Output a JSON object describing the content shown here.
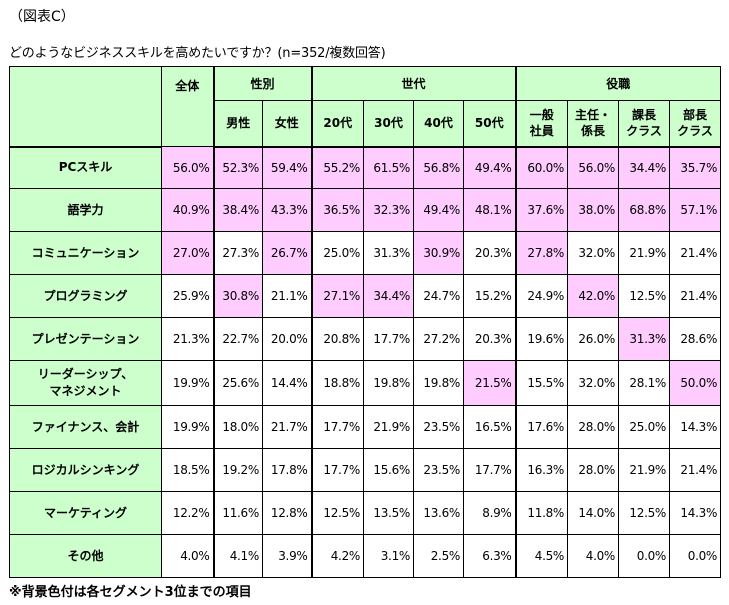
{
  "figure_label": "（図表C）",
  "question": "どのようなビジネススキルを高めたいですか？(n=352/複数回答)",
  "note": "※背景色付は各セグメント3位までの項目",
  "header": {
    "total": "全体",
    "groups": [
      {
        "label": "性別",
        "cols": [
          "男性",
          "女性"
        ]
      },
      {
        "label": "世代",
        "cols": [
          "20代",
          "30代",
          "40代",
          "50代"
        ]
      },
      {
        "label": "役職",
        "cols": [
          "一般\n社員",
          "主任・\n係長",
          "課長\nクラス",
          "部長\nクラス"
        ]
      }
    ]
  },
  "rows": [
    {
      "label": "PCスキル",
      "values": [
        "56.0%",
        "52.3%",
        "59.4%",
        "55.2%",
        "61.5%",
        "56.8%",
        "49.4%",
        "60.0%",
        "56.0%",
        "34.4%",
        "35.7%"
      ],
      "highlight": [
        1,
        1,
        1,
        1,
        1,
        1,
        1,
        1,
        1,
        1,
        1
      ]
    },
    {
      "label": "語学力",
      "values": [
        "40.9%",
        "38.4%",
        "43.3%",
        "36.5%",
        "32.3%",
        "49.4%",
        "48.1%",
        "37.6%",
        "38.0%",
        "68.8%",
        "57.1%"
      ],
      "highlight": [
        1,
        1,
        1,
        1,
        1,
        1,
        1,
        1,
        1,
        1,
        1
      ]
    },
    {
      "label": "コミュニケーション",
      "values": [
        "27.0%",
        "27.3%",
        "26.7%",
        "25.0%",
        "31.3%",
        "30.9%",
        "20.3%",
        "27.8%",
        "32.0%",
        "21.9%",
        "21.4%"
      ],
      "highlight": [
        1,
        0,
        1,
        0,
        0,
        1,
        0,
        1,
        0,
        0,
        0
      ]
    },
    {
      "label": "プログラミング",
      "values": [
        "25.9%",
        "30.8%",
        "21.1%",
        "27.1%",
        "34.4%",
        "24.7%",
        "15.2%",
        "24.9%",
        "42.0%",
        "12.5%",
        "21.4%"
      ],
      "highlight": [
        0,
        1,
        0,
        1,
        1,
        0,
        0,
        0,
        1,
        0,
        0
      ]
    },
    {
      "label": "プレゼンテーション",
      "values": [
        "21.3%",
        "22.7%",
        "20.0%",
        "20.8%",
        "17.7%",
        "27.2%",
        "20.3%",
        "19.6%",
        "26.0%",
        "31.3%",
        "28.6%"
      ],
      "highlight": [
        0,
        0,
        0,
        0,
        0,
        0,
        0,
        0,
        0,
        1,
        0
      ]
    },
    {
      "label": "リーダーシップ、\nマネジメント",
      "values": [
        "19.9%",
        "25.6%",
        "14.4%",
        "18.8%",
        "19.8%",
        "19.8%",
        "21.5%",
        "15.5%",
        "32.0%",
        "28.1%",
        "50.0%"
      ],
      "highlight": [
        0,
        0,
        0,
        0,
        0,
        0,
        1,
        0,
        0,
        0,
        1
      ]
    },
    {
      "label": "ファイナンス、会計",
      "values": [
        "19.9%",
        "18.0%",
        "21.7%",
        "17.7%",
        "21.9%",
        "23.5%",
        "16.5%",
        "17.6%",
        "28.0%",
        "25.0%",
        "14.3%"
      ],
      "highlight": [
        0,
        0,
        0,
        0,
        0,
        0,
        0,
        0,
        0,
        0,
        0
      ]
    },
    {
      "label": "ロジカルシンキング",
      "values": [
        "18.5%",
        "19.2%",
        "17.8%",
        "17.7%",
        "15.6%",
        "23.5%",
        "17.7%",
        "16.3%",
        "28.0%",
        "21.9%",
        "21.4%"
      ],
      "highlight": [
        0,
        0,
        0,
        0,
        0,
        0,
        0,
        0,
        0,
        0,
        0
      ]
    },
    {
      "label": "マーケティング",
      "values": [
        "12.2%",
        "11.6%",
        "12.8%",
        "12.5%",
        "13.5%",
        "13.6%",
        "8.9%",
        "11.8%",
        "14.0%",
        "12.5%",
        "14.3%"
      ],
      "highlight": [
        0,
        0,
        0,
        0,
        0,
        0,
        0,
        0,
        0,
        0,
        0
      ]
    },
    {
      "label": "その他",
      "values": [
        "4.0%",
        "4.1%",
        "3.9%",
        "4.2%",
        "3.1%",
        "2.5%",
        "6.3%",
        "4.5%",
        "4.0%",
        "0.0%",
        "0.0%"
      ],
      "highlight": [
        0,
        0,
        0,
        0,
        0,
        0,
        0,
        0,
        0,
        0,
        0
      ]
    }
  ],
  "colors": {
    "header_bg": "#ccffcc",
    "highlight_bg": "#ffccff"
  }
}
